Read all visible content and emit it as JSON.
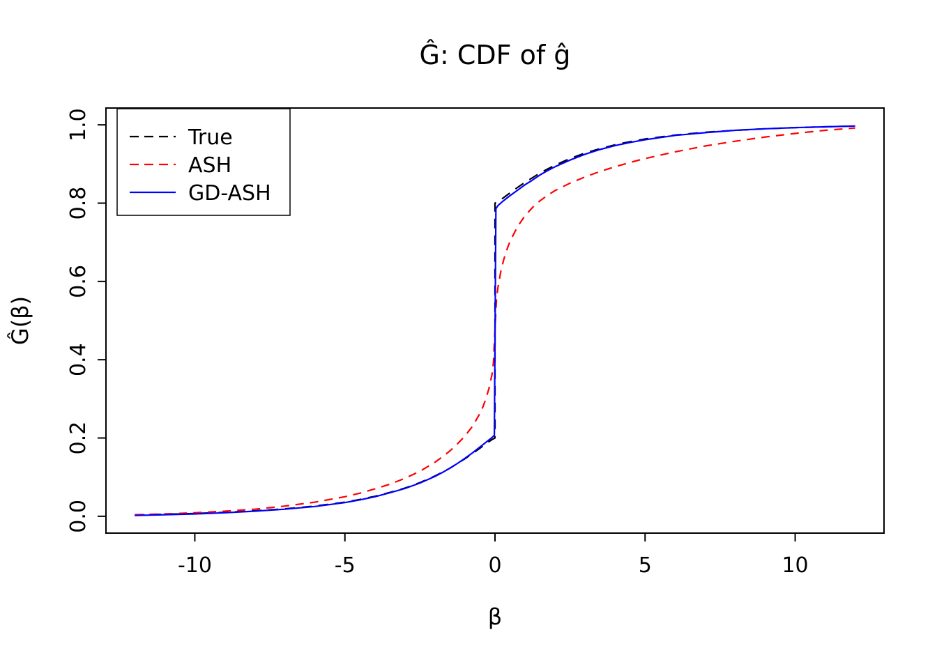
{
  "figure": {
    "background": "#ffffff",
    "foreground": "#000000"
  },
  "chart_data": {
    "type": "line",
    "title": "Ĝ: CDF of ĝ",
    "xlabel": "β",
    "ylabel": "Ĝ(β)",
    "xlim": [
      -12.96,
      12.96
    ],
    "ylim": [
      -0.043,
      1.043
    ],
    "x_ticks": [
      -10,
      -5,
      0,
      5,
      10
    ],
    "x_tick_labels": [
      "-10",
      "-5",
      "0",
      "5",
      "10"
    ],
    "y_ticks": [
      0,
      0.2,
      0.4,
      0.6,
      0.8,
      1
    ],
    "y_tick_labels": [
      "0.0",
      "0.2",
      "0.4",
      "0.6",
      "0.8",
      "1.0"
    ],
    "grid": false,
    "legend_position": "top-left",
    "description": "CDF curves with a point mass jump at beta=0 from about 0.2 to 0.8",
    "series": [
      {
        "name": "True",
        "color": "#000000",
        "style": "dashed",
        "dash": "14,10",
        "x": [
          -12,
          -11,
          -10,
          -9,
          -8,
          -7,
          -6,
          -5,
          -4.5,
          -4,
          -3.5,
          -3,
          -2.5,
          -2,
          -1.75,
          -1.5,
          -1.25,
          -1,
          -0.75,
          -0.5,
          -0.25,
          -0.1,
          0,
          0,
          0.1,
          0.25,
          0.5,
          0.75,
          1,
          1.25,
          1.5,
          1.75,
          2,
          2.5,
          3,
          3.5,
          4,
          4.5,
          5,
          6,
          7,
          8,
          9,
          10,
          11,
          12
        ],
        "y": [
          0.003,
          0.005,
          0.007,
          0.01,
          0.014,
          0.019,
          0.026,
          0.036,
          0.043,
          0.051,
          0.061,
          0.072,
          0.086,
          0.103,
          0.113,
          0.123,
          0.135,
          0.147,
          0.16,
          0.174,
          0.188,
          0.196,
          0.2,
          0.8,
          0.804,
          0.812,
          0.826,
          0.84,
          0.853,
          0.865,
          0.877,
          0.887,
          0.897,
          0.914,
          0.928,
          0.939,
          0.949,
          0.957,
          0.964,
          0.974,
          0.981,
          0.986,
          0.99,
          0.993,
          0.995,
          0.997
        ]
      },
      {
        "name": "ASH",
        "color": "#ff0000",
        "style": "dashed",
        "dash": "12,9",
        "x": [
          -12,
          -11,
          -10,
          -9,
          -8,
          -7,
          -6,
          -5,
          -4.5,
          -4,
          -3.5,
          -3,
          -2.5,
          -2,
          -1.75,
          -1.5,
          -1.25,
          -1,
          -0.75,
          -0.5,
          -0.4,
          -0.3,
          -0.2,
          -0.1,
          -0.05,
          0,
          0.05,
          0.1,
          0.2,
          0.3,
          0.4,
          0.5,
          0.75,
          1,
          1.25,
          1.5,
          1.75,
          2,
          2.5,
          3,
          3.5,
          4,
          4.5,
          5,
          6,
          7,
          8,
          9,
          10,
          11,
          12
        ],
        "y": [
          0.004,
          0.006,
          0.009,
          0.013,
          0.018,
          0.026,
          0.036,
          0.05,
          0.059,
          0.07,
          0.082,
          0.097,
          0.115,
          0.138,
          0.152,
          0.167,
          0.185,
          0.205,
          0.23,
          0.263,
          0.28,
          0.301,
          0.327,
          0.362,
          0.393,
          0.48,
          0.555,
          0.585,
          0.628,
          0.658,
          0.682,
          0.702,
          0.74,
          0.768,
          0.789,
          0.806,
          0.82,
          0.832,
          0.851,
          0.867,
          0.881,
          0.893,
          0.904,
          0.914,
          0.931,
          0.946,
          0.958,
          0.969,
          0.978,
          0.986,
          0.992
        ]
      },
      {
        "name": "GD-ASH",
        "color": "#0000ff",
        "style": "solid",
        "dash": null,
        "x": [
          -12,
          -11,
          -10,
          -9,
          -8,
          -7,
          -6,
          -5,
          -4.5,
          -4,
          -3.5,
          -3,
          -2.5,
          -2,
          -1.75,
          -1.5,
          -1.25,
          -1,
          -0.75,
          -0.5,
          -0.25,
          -0.1,
          -0.02,
          0.03,
          0.1,
          0.25,
          0.5,
          0.75,
          1,
          1.25,
          1.5,
          1.75,
          2,
          2.5,
          3,
          3.5,
          4,
          4.5,
          5,
          6,
          7,
          8,
          9,
          10,
          11,
          12
        ],
        "y": [
          0.002,
          0.004,
          0.006,
          0.009,
          0.013,
          0.018,
          0.025,
          0.035,
          0.042,
          0.05,
          0.06,
          0.071,
          0.085,
          0.102,
          0.112,
          0.123,
          0.135,
          0.148,
          0.162,
          0.177,
          0.192,
          0.201,
          0.207,
          0.786,
          0.794,
          0.804,
          0.819,
          0.833,
          0.847,
          0.859,
          0.872,
          0.883,
          0.893,
          0.91,
          0.925,
          0.937,
          0.947,
          0.955,
          0.962,
          0.973,
          0.98,
          0.986,
          0.99,
          0.993,
          0.995,
          0.997
        ]
      }
    ]
  }
}
